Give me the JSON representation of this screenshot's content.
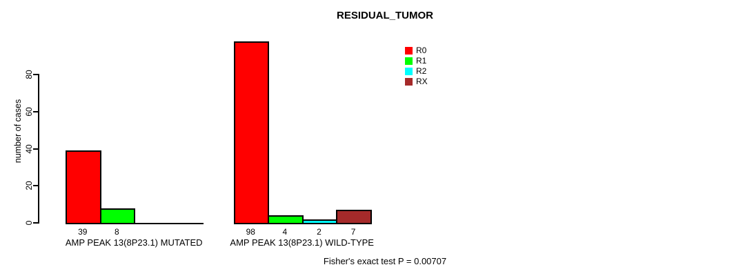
{
  "chart_data": {
    "type": "bar",
    "title": "RESIDUAL_TUMOR",
    "xlabel": "",
    "ylabel": "number of cases",
    "categories": [
      "AMP PEAK 13(8P23.1) MUTATED",
      "AMP PEAK 13(8P23.1) WILD-TYPE"
    ],
    "series": [
      {
        "name": "R0",
        "color": "#FF0000",
        "values": [
          39,
          98
        ]
      },
      {
        "name": "R1",
        "color": "#00FF00",
        "values": [
          8,
          4
        ]
      },
      {
        "name": "R2",
        "color": "#00FFFF",
        "values": [
          0,
          2
        ]
      },
      {
        "name": "RX",
        "color": "#A52A2A",
        "values": [
          0,
          7
        ]
      }
    ],
    "yticks": [
      0,
      20,
      40,
      60,
      80
    ],
    "ylim": [
      0,
      98
    ],
    "grid": false,
    "legend_position": "top-right",
    "bar_value_labels": "shown under each nonzero bar",
    "annotation": "Fisher's exact test P = 0.00707"
  }
}
